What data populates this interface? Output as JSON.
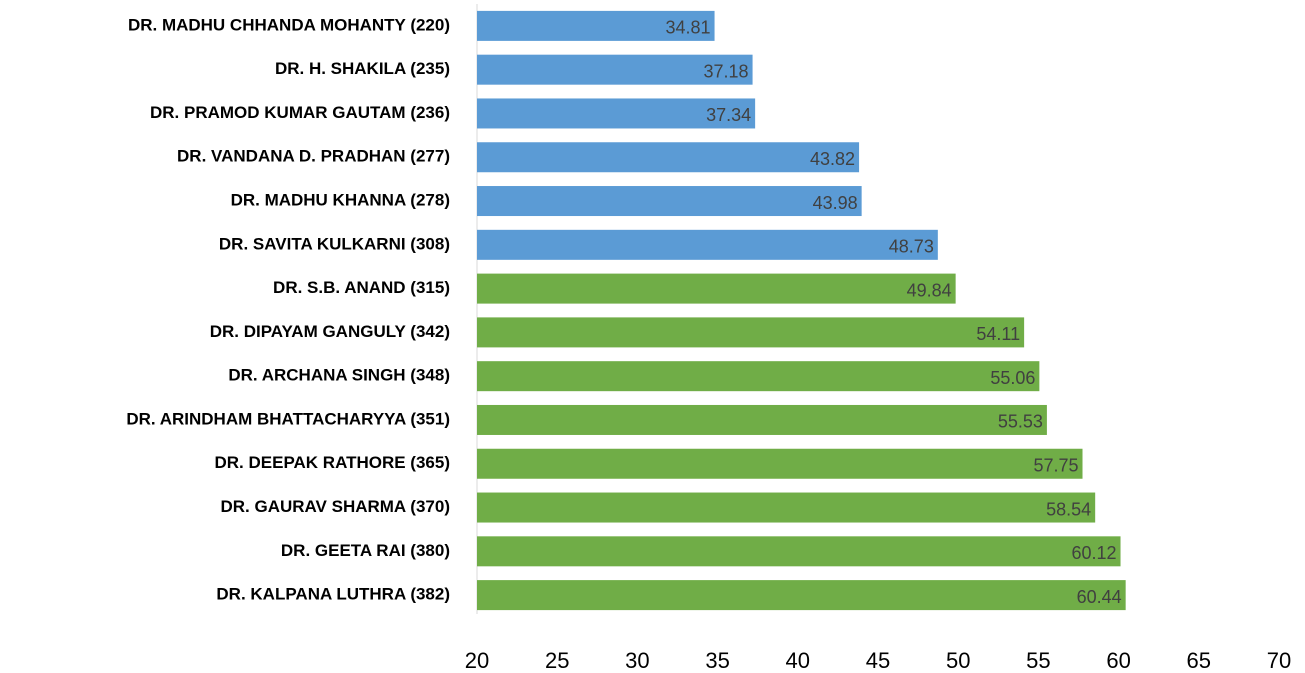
{
  "chart_data": {
    "type": "hbar",
    "categories": [
      "DR. MADHU CHHANDA MOHANTY (220)",
      "DR. H. SHAKILA (235)",
      "DR. PRAMOD KUMAR GAUTAM (236)",
      "DR. VANDANA D. PRADHAN (277)",
      "DR. MADHU KHANNA (278)",
      "DR. SAVITA KULKARNI (308)",
      "DR. S.B. ANAND (315)",
      "DR. DIPAYAM GANGULY (342)",
      "DR. ARCHANA SINGH (348)",
      "DR. ARINDHAM BHATTACHARYYA (351)",
      "DR. DEEPAK RATHORE (365)",
      "DR. GAURAV SHARMA (370)",
      "DR. GEETA RAI (380)",
      "DR. KALPANA LUTHRA (382)"
    ],
    "values": [
      34.81,
      37.18,
      37.34,
      43.82,
      43.98,
      48.73,
      49.84,
      54.11,
      55.06,
      55.53,
      57.75,
      58.54,
      60.12,
      60.44
    ],
    "colors": [
      "#5b9bd5",
      "#5b9bd5",
      "#5b9bd5",
      "#5b9bd5",
      "#5b9bd5",
      "#5b9bd5",
      "#70ad47",
      "#70ad47",
      "#70ad47",
      "#70ad47",
      "#70ad47",
      "#70ad47",
      "#70ad47",
      "#70ad47"
    ],
    "xlim": [
      20,
      70
    ],
    "xticks": [
      20,
      25,
      30,
      35,
      40,
      45,
      50,
      55,
      60,
      65,
      70
    ],
    "grid": false
  }
}
